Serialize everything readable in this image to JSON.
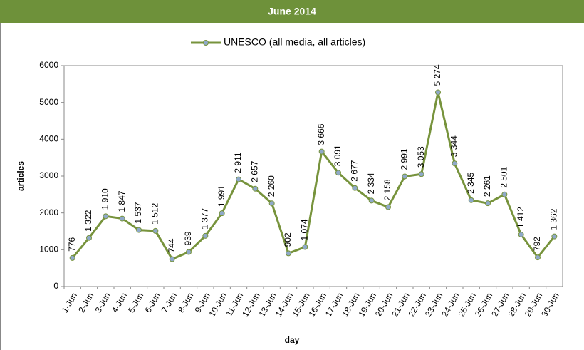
{
  "chart_data": {
    "type": "line",
    "title": "June 2014",
    "x_label": "day",
    "y_label": "articles",
    "categories": [
      "1-Jun",
      "2-Jun",
      "3-Jun",
      "4-Jun",
      "5-Jun",
      "6-Jun",
      "7-Jun",
      "8-Jun",
      "9-Jun",
      "10-Jun",
      "11-Jun",
      "12-Jun",
      "13-Jun",
      "14-Jun",
      "15-Jun",
      "16-Jun",
      "17-Jun",
      "18-Jun",
      "19-Jun",
      "20-Jun",
      "21-Jun",
      "22-Jun",
      "23-Jun",
      "24-Jun",
      "25-Jun",
      "26-Jun",
      "27-Jun",
      "28-Jun",
      "29-Jun",
      "30-Jun"
    ],
    "series": [
      {
        "name": "UNESCO (all media, all articles)",
        "color": "#77933c",
        "marker_color": "#8fa9c9",
        "values": [
          776,
          1322,
          1910,
          1847,
          1537,
          1512,
          744,
          939,
          1377,
          1991,
          2911,
          2657,
          2260,
          902,
          1074,
          3666,
          3091,
          2677,
          2334,
          2158,
          2991,
          3053,
          5274,
          3344,
          2345,
          2261,
          2501,
          1412,
          792,
          1362
        ],
        "value_labels": [
          "776",
          "1 322",
          "1 910",
          "1 847",
          "1 537",
          "1 512",
          "744",
          "939",
          "1 377",
          "1 991",
          "2 911",
          "2 657",
          "2 260",
          "902",
          "1 074",
          "3 666",
          "3 091",
          "2 677",
          "2 334",
          "2 158",
          "2 991",
          "3 053",
          "5 274",
          "3 344",
          "2 345",
          "2 261",
          "2 501",
          "1 412",
          "792",
          "1 362"
        ]
      }
    ],
    "ylim": [
      0,
      6000
    ],
    "yticks": [
      0,
      1000,
      2000,
      3000,
      4000,
      5000,
      6000
    ],
    "grid": false,
    "legend": "top"
  }
}
